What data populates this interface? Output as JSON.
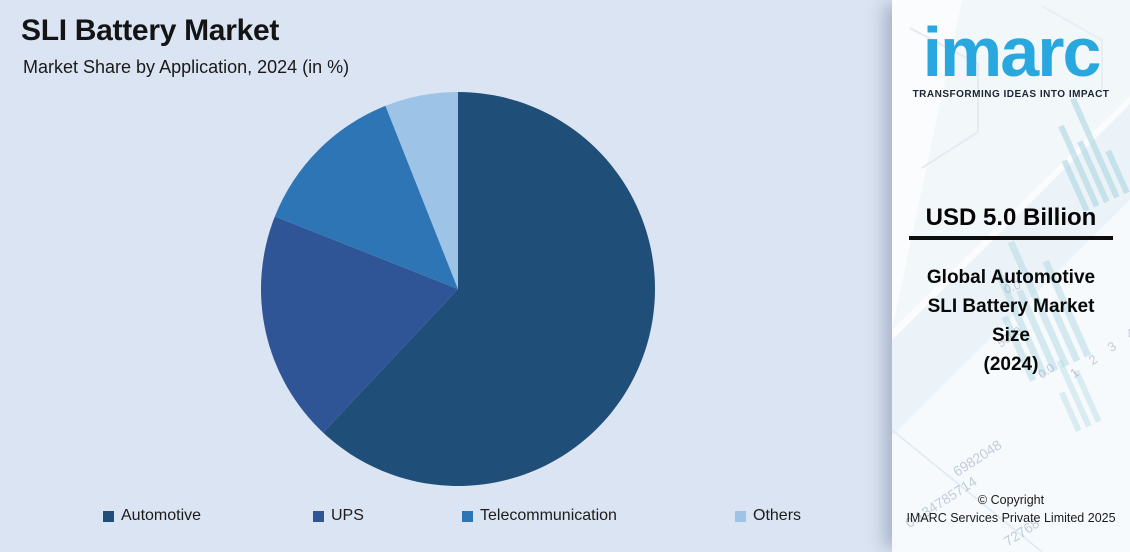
{
  "chart_data": {
    "type": "pie",
    "title": "SLI Battery Market",
    "subtitle": "Market Share by Application, 2024 (in %)",
    "unit": "%",
    "start_angle_deg": 0,
    "direction": "clockwise",
    "legend_position": "bottom",
    "series": [
      {
        "name": "Automotive",
        "value": 62,
        "color": "#1f4e79"
      },
      {
        "name": "UPS",
        "value": 19,
        "color": "#2f5597"
      },
      {
        "name": "Telecommunication",
        "value": 13,
        "color": "#2e75b6"
      },
      {
        "name": "Others",
        "value": 6,
        "color": "#9dc3e6"
      }
    ]
  },
  "sidebar": {
    "logo_text": "imarc",
    "logo_tagline": "TRANSFORMING IDEAS INTO IMPACT",
    "brand_color": "#29a8e0",
    "market_value": "USD 5.0 Billion",
    "headline_lines": [
      "Global Automotive",
      "SLI Battery Market",
      "Size",
      "(2024)"
    ],
    "copyright_line1": "© Copyright",
    "copyright_line2": "IMARC Services Private Limited 2025",
    "watermark_numbers": [
      "0.0",
      "5000",
      "1 2 3 4",
      "0.0",
      "6982048",
      "0.134785714",
      "72768"
    ]
  },
  "colors": {
    "page_background": "#dbe4f2",
    "sidebar_background": "#fbfcfe",
    "title_text": "#141414"
  }
}
